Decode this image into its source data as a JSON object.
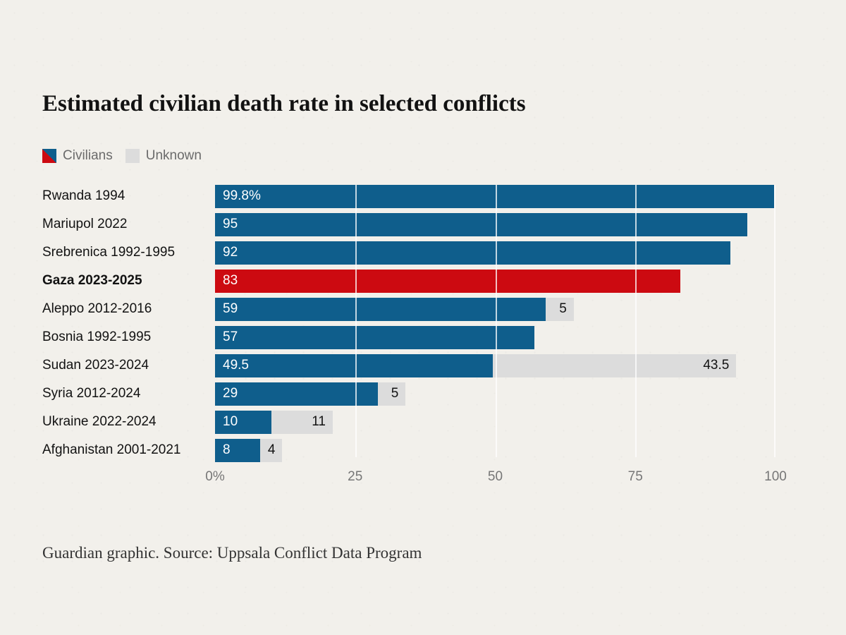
{
  "chart_data": {
    "type": "bar",
    "orientation": "horizontal",
    "title": "Estimated civilian death rate in selected conflicts",
    "categories": [
      "Rwanda 1994",
      "Mariupol 2022",
      "Srebrenica 1992-1995",
      "Gaza 2023-2025",
      "Aleppo 2012-2016",
      "Bosnia 1992-1995",
      "Sudan 2023-2024",
      "Syria 2012-2024",
      "Ukraine 2022-2024",
      "Afghanistan 2001-2021"
    ],
    "series": [
      {
        "name": "Civilians",
        "values": [
          99.8,
          95,
          92,
          83,
          59,
          57,
          49.5,
          29,
          10,
          8
        ],
        "labels": [
          "99.8%",
          "95",
          "92",
          "83",
          "59",
          "57",
          "49.5",
          "29",
          "10",
          "8"
        ]
      },
      {
        "name": "Unknown",
        "values": [
          0,
          0,
          0,
          0,
          5,
          0,
          43.5,
          5,
          11,
          4
        ],
        "labels": [
          "",
          "",
          "",
          "",
          "5",
          "",
          "43.5",
          "5",
          "11",
          "4"
        ]
      }
    ],
    "highlight_index": 3,
    "highlight_category": "Gaza 2023-2025",
    "x_ticks": [
      "0%",
      "25",
      "50",
      "75",
      "100"
    ],
    "x_tick_positions": [
      0,
      25,
      50,
      75,
      100
    ],
    "xlim": [
      0,
      100
    ],
    "grid": true,
    "legend_position": "top-left",
    "legend": [
      {
        "label": "Civilians",
        "swatch": "blue-red-diagonal"
      },
      {
        "label": "Unknown",
        "swatch": "gray"
      }
    ],
    "colors": {
      "civilians": "#0f5e8c",
      "highlight": "#cc0a11",
      "unknown": "#dcdcdc",
      "background": "#f2f0eb",
      "gridline": "#ffffff"
    },
    "source": "Guardian graphic. Source: Uppsala Conflict Data Program"
  }
}
